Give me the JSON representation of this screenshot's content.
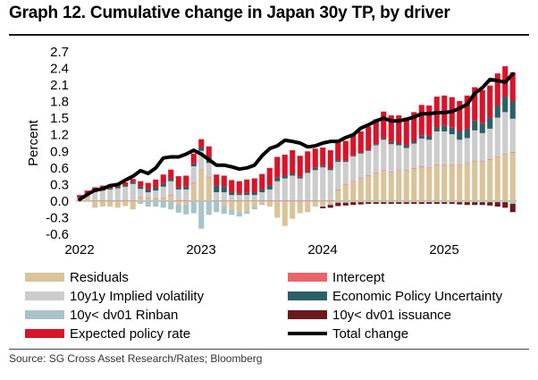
{
  "header": {
    "title": "Graph 12.  Cumulative change in Japan 30y TP, by driver"
  },
  "source": "Source: SG Cross Asset Research/Rates; Bloomberg",
  "chart_data": {
    "type": "bar",
    "stacked": true,
    "ylabel": "Percent",
    "ylim": [
      -0.6,
      2.7
    ],
    "yticks": [
      2.7,
      2.4,
      2.1,
      1.8,
      1.5,
      1.2,
      0.9,
      0.6,
      0.3,
      0.0,
      -0.3,
      -0.6
    ],
    "xticklabels": [
      "2022",
      "2023",
      "2024",
      "2025"
    ],
    "xticks_at_index": [
      0,
      16,
      32,
      48
    ],
    "grid": false,
    "legend_position": "bottom",
    "series": [
      {
        "name": "Residuals",
        "color": "#d9c39a",
        "values": [
          0.05,
          0.08,
          -0.12,
          -0.1,
          -0.1,
          -0.12,
          -0.09,
          -0.15,
          0.06,
          0.05,
          0.03,
          0.05,
          0.1,
          -0.06,
          -0.06,
          0.32,
          0.55,
          0.43,
          0.0,
          -0.08,
          -0.15,
          -0.2,
          -0.18,
          -0.1,
          -0.05,
          -0.1,
          -0.3,
          -0.45,
          -0.32,
          -0.22,
          -0.2,
          -0.1,
          -0.1,
          -0.05,
          0.2,
          0.3,
          0.35,
          0.4,
          0.45,
          0.5,
          0.55,
          0.52,
          0.55,
          0.55,
          0.58,
          0.62,
          0.6,
          0.65,
          0.65,
          0.65,
          0.65,
          0.68,
          0.72,
          0.72,
          0.75,
          0.8,
          0.85,
          0.88
        ]
      },
      {
        "name": "Intercept",
        "color": "#e8656c",
        "values": [
          0.01,
          0.01,
          0.01,
          0.01,
          0.01,
          0.01,
          0.01,
          0.01,
          0.01,
          0.01,
          0.01,
          0.01,
          0.01,
          0.01,
          0.01,
          0.01,
          0.01,
          0.01,
          0.01,
          0.01,
          0.01,
          0.01,
          0.01,
          0.01,
          0.01,
          0.01,
          0.01,
          0.01,
          0.01,
          0.01,
          0.01,
          0.01,
          0.01,
          0.01,
          0.01,
          0.01,
          0.01,
          0.01,
          0.01,
          0.01,
          0.01,
          0.01,
          0.01,
          0.01,
          0.01,
          0.01,
          0.01,
          0.01,
          0.01,
          0.01,
          0.01,
          0.01,
          0.01,
          0.01,
          0.01,
          0.01,
          0.01,
          0.01
        ]
      },
      {
        "name": "10y1y Implied volatility",
        "color": "#cccccc",
        "values": [
          0.0,
          0.03,
          0.15,
          0.18,
          0.2,
          0.22,
          0.25,
          0.3,
          0.15,
          0.1,
          0.15,
          0.2,
          0.25,
          0.2,
          0.2,
          0.3,
          0.35,
          0.25,
          0.15,
          0.15,
          0.1,
          0.1,
          0.1,
          0.1,
          0.15,
          0.2,
          0.35,
          0.4,
          0.45,
          0.4,
          0.5,
          0.55,
          0.6,
          0.55,
          0.5,
          0.4,
          0.45,
          0.45,
          0.45,
          0.5,
          0.55,
          0.5,
          0.45,
          0.4,
          0.45,
          0.5,
          0.5,
          0.6,
          0.6,
          0.55,
          0.45,
          0.45,
          0.55,
          0.5,
          0.55,
          0.7,
          0.75,
          0.6
        ]
      },
      {
        "name": "Economic Policy Uncertainty",
        "color": "#2d5f66",
        "values": [
          0.0,
          0.0,
          0.01,
          0.01,
          0.02,
          0.03,
          0.03,
          0.03,
          0.04,
          0.05,
          0.06,
          0.06,
          0.05,
          0.04,
          0.05,
          0.05,
          0.06,
          0.1,
          0.12,
          0.1,
          0.05,
          0.03,
          0.04,
          0.05,
          0.05,
          0.07,
          0.07,
          0.05,
          0.04,
          0.03,
          0.03,
          0.05,
          0.03,
          0.03,
          0.03,
          0.02,
          0.02,
          0.02,
          0.02,
          0.02,
          0.03,
          0.04,
          0.04,
          0.05,
          0.05,
          0.06,
          0.07,
          0.08,
          0.1,
          0.12,
          0.15,
          0.17,
          0.18,
          0.18,
          0.2,
          0.22,
          0.28,
          0.32
        ]
      },
      {
        "name": "10y< dv01 Rinban",
        "color": "#a9c4c9",
        "values": [
          0.0,
          0.0,
          0.0,
          0.0,
          0.0,
          0.0,
          0.0,
          0.0,
          -0.05,
          -0.1,
          -0.1,
          -0.12,
          -0.15,
          -0.15,
          -0.18,
          -0.22,
          -0.5,
          -0.25,
          -0.2,
          -0.15,
          -0.1,
          -0.08,
          -0.05,
          -0.05,
          -0.02,
          0.0,
          0.0,
          0.0,
          0.0,
          0.0,
          0.0,
          0.0,
          0.0,
          -0.02,
          -0.03,
          -0.03,
          -0.02,
          -0.02,
          -0.02,
          -0.02,
          -0.02,
          -0.02,
          -0.02,
          -0.02,
          -0.02,
          -0.02,
          -0.02,
          -0.02,
          -0.02,
          -0.02,
          -0.02,
          -0.02,
          -0.02,
          -0.02,
          -0.02,
          -0.02,
          -0.02,
          -0.05
        ]
      },
      {
        "name": "10y< dv01 issuance",
        "color": "#6a1a1f",
        "values": [
          0.0,
          0.0,
          0.0,
          0.0,
          0.0,
          0.0,
          0.0,
          0.0,
          0.0,
          0.0,
          0.0,
          0.0,
          0.0,
          0.0,
          0.0,
          0.0,
          0.0,
          0.0,
          0.0,
          0.0,
          0.0,
          0.0,
          0.0,
          0.0,
          0.0,
          0.0,
          0.0,
          0.0,
          0.0,
          0.0,
          0.0,
          0.0,
          -0.03,
          -0.05,
          -0.06,
          -0.05,
          -0.05,
          -0.04,
          -0.03,
          -0.03,
          -0.03,
          -0.03,
          -0.03,
          -0.03,
          -0.03,
          -0.03,
          -0.03,
          -0.03,
          -0.03,
          -0.03,
          -0.04,
          -0.05,
          -0.05,
          -0.05,
          -0.06,
          -0.08,
          -0.1,
          -0.15
        ]
      },
      {
        "name": "Expected policy rate",
        "color": "#d8142a",
        "values": [
          0.05,
          0.07,
          0.08,
          0.08,
          0.07,
          0.05,
          0.05,
          0.06,
          0.1,
          0.12,
          0.14,
          0.16,
          0.16,
          0.2,
          0.2,
          0.18,
          0.15,
          0.2,
          0.2,
          0.2,
          0.22,
          0.22,
          0.24,
          0.25,
          0.28,
          0.32,
          0.37,
          0.38,
          0.42,
          0.38,
          0.36,
          0.34,
          0.33,
          0.33,
          0.34,
          0.36,
          0.38,
          0.38,
          0.42,
          0.45,
          0.48,
          0.48,
          0.5,
          0.5,
          0.52,
          0.55,
          0.55,
          0.55,
          0.55,
          0.55,
          0.55,
          0.6,
          0.6,
          0.6,
          0.58,
          0.58,
          0.55,
          0.52
        ]
      }
    ],
    "line": {
      "name": "Total change",
      "color": "#000000",
      "values": [
        0.03,
        0.12,
        0.2,
        0.22,
        0.28,
        0.3,
        0.38,
        0.45,
        0.55,
        0.5,
        0.6,
        0.78,
        0.8,
        0.8,
        0.85,
        0.92,
        0.85,
        0.75,
        0.65,
        0.65,
        0.62,
        0.58,
        0.6,
        0.65,
        0.82,
        0.95,
        1.0,
        1.1,
        1.08,
        1.05,
        0.98,
        1.0,
        1.05,
        1.08,
        1.08,
        1.15,
        1.2,
        1.32,
        1.38,
        1.45,
        1.5,
        1.45,
        1.45,
        1.48,
        1.52,
        1.58,
        1.58,
        1.6,
        1.6,
        1.62,
        1.68,
        1.75,
        1.95,
        2.05,
        2.2,
        2.18,
        2.15,
        2.3
      ]
    }
  }
}
